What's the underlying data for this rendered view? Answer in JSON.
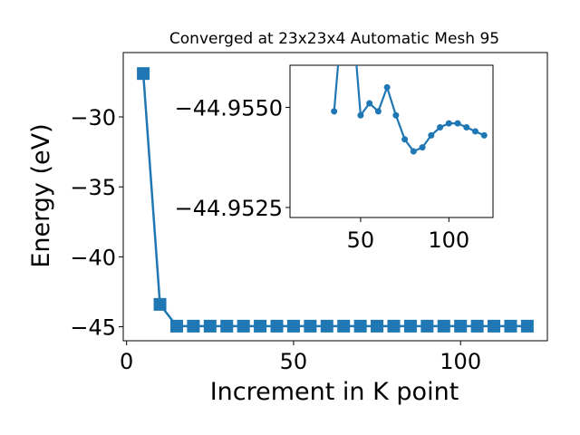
{
  "chart_data": [
    {
      "type": "line",
      "title": "Converged at 23x23x4 Automatic Mesh 95",
      "xlabel": "Increment in K point",
      "ylabel": "Energy (eV)",
      "xlim": [
        -1,
        126
      ],
      "ylim": [
        -46,
        -25.4
      ],
      "xticks": [
        0,
        50,
        100
      ],
      "xtick_labels": [
        "0",
        "50",
        "100"
      ],
      "yticks": [
        -30,
        -35,
        -40,
        -45
      ],
      "ytick_labels": [
        "−30",
        "−35",
        "−40",
        "−45"
      ],
      "grid": false,
      "color": "#1f77b4",
      "marker": "square",
      "x": [
        5,
        10,
        15,
        20,
        25,
        30,
        35,
        40,
        45,
        50,
        55,
        60,
        65,
        70,
        75,
        80,
        85,
        90,
        95,
        100,
        105,
        110,
        115,
        120
      ],
      "y": [
        -26.9,
        -43.4,
        -44.955,
        -44.955,
        -44.955,
        -44.955,
        -44.955,
        -44.955,
        -44.955,
        -44.955,
        -44.955,
        -44.955,
        -44.955,
        -44.955,
        -44.955,
        -44.955,
        -44.955,
        -44.955,
        -44.955,
        -44.955,
        -44.955,
        -44.955,
        -44.955,
        -44.955
      ]
    },
    {
      "type": "line",
      "role": "inset",
      "xlim": [
        10,
        125
      ],
      "ylim": [
        -44.95225,
        -44.95605
      ],
      "yaxis_inverted": true,
      "xticks": [
        50,
        100
      ],
      "xtick_labels": [
        "50",
        "100"
      ],
      "yticks": [
        -44.955,
        -44.9525
      ],
      "ytick_labels": [
        "−44.9550",
        "−44.9525"
      ],
      "grid": false,
      "color": "#1f77b4",
      "marker": "circle",
      "x": [
        35,
        40,
        45,
        50,
        55,
        60,
        65,
        70,
        75,
        80,
        85,
        90,
        95,
        100,
        105,
        110,
        115,
        120
      ],
      "y": [
        -44.9549,
        -44.9575,
        -44.9575,
        -44.9548,
        -44.9551,
        -44.9549,
        -44.9555,
        -44.9548,
        -44.9542,
        -44.9539,
        -44.954,
        -44.9543,
        -44.9545,
        -44.9546,
        -44.9546,
        -44.9545,
        -44.9544,
        -44.9543
      ]
    }
  ]
}
